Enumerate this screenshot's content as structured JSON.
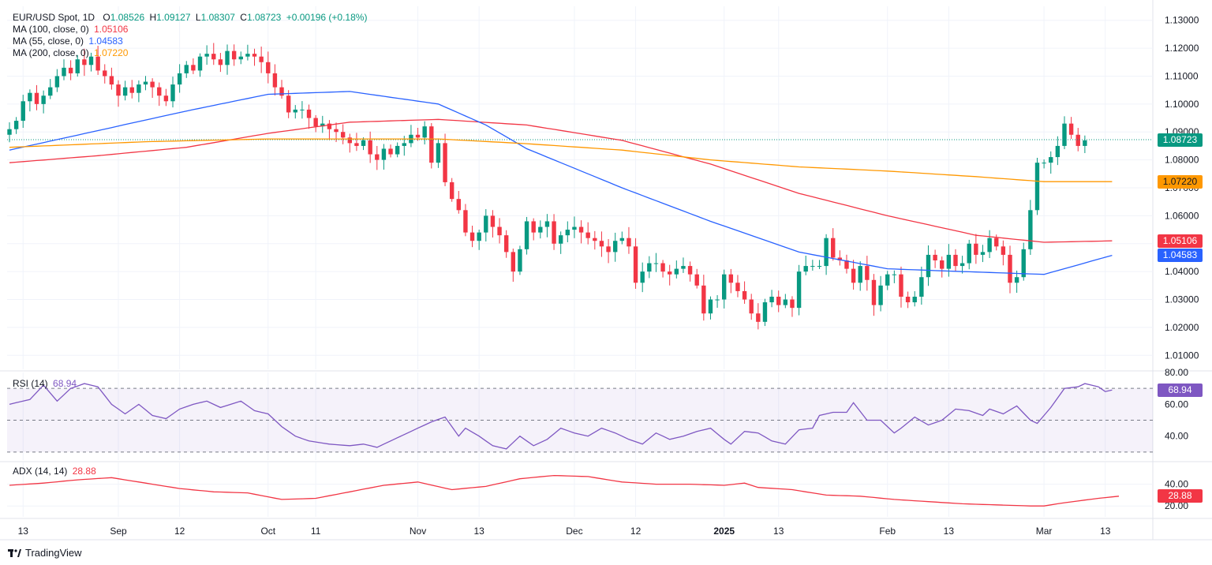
{
  "header": {
    "symbol": "EUR/USD Spot, 1D",
    "open_label": "O",
    "open": "1.08526",
    "high_label": "H",
    "high": "1.09127",
    "low_label": "L",
    "low": "1.08307",
    "close_label": "C",
    "close": "1.08723",
    "change": "+0.00196 (+0.18%)"
  },
  "indicators": {
    "ma100": {
      "label": "MA (100, close, 0)",
      "value": "1.05106",
      "color": "#f23645"
    },
    "ma55": {
      "label": "MA (55, close, 0)",
      "value": "1.04583",
      "color": "#2962ff"
    },
    "ma200": {
      "label": "MA (200, close, 0)",
      "value": "1.07220",
      "color": "#ff9800"
    },
    "rsi": {
      "label": "RSI (14)",
      "value": "68.94",
      "color": "#7e57c2"
    },
    "adx": {
      "label": "ADX (14, 14)",
      "value": "28.88",
      "color": "#f23645"
    }
  },
  "price_badges": {
    "last": {
      "value": "1.08723",
      "color": "#089981"
    },
    "ma200": {
      "value": "1.07220",
      "color": "#ff9800"
    },
    "ma100": {
      "value": "1.05106",
      "color": "#f23645"
    },
    "ma55": {
      "value": "1.04583",
      "color": "#2962ff"
    }
  },
  "colors": {
    "up": "#089981",
    "down": "#f23645",
    "grid": "#f0f3fa",
    "text": "#131722"
  },
  "brand": {
    "name": "TradingView"
  },
  "chart_data": [
    {
      "type": "candlestick",
      "title": "EUR/USD Spot, 1D",
      "ylim": [
        1.005,
        1.135
      ],
      "yticks": [
        "1.13000",
        "1.12000",
        "1.11000",
        "1.10000",
        "1.09000",
        "1.08000",
        "1.07000",
        "1.06000",
        "1.05000",
        "1.04000",
        "1.03000",
        "1.02000",
        "1.01000"
      ],
      "xticks": [
        {
          "label": "13",
          "index": 2
        },
        {
          "label": "Sep",
          "index": 16
        },
        {
          "label": "12",
          "index": 25
        },
        {
          "label": "Oct",
          "index": 38
        },
        {
          "label": "11",
          "index": 45
        },
        {
          "label": "Nov",
          "index": 60
        },
        {
          "label": "13",
          "index": 69
        },
        {
          "label": "Dec",
          "index": 83
        },
        {
          "label": "12",
          "index": 92
        },
        {
          "label": "2025",
          "index": 105,
          "bold": true
        },
        {
          "label": "13",
          "index": 113
        },
        {
          "label": "Feb",
          "index": 129
        },
        {
          "label": "13",
          "index": 138
        },
        {
          "label": "Mar",
          "index": 152
        },
        {
          "label": "13",
          "index": 161
        }
      ],
      "last_price": 1.08723,
      "closes": [
        1.091,
        1.094,
        1.101,
        1.104,
        1.1,
        1.103,
        1.106,
        1.11,
        1.113,
        1.111,
        1.116,
        1.114,
        1.117,
        1.112,
        1.11,
        1.107,
        1.103,
        1.106,
        1.104,
        1.107,
        1.108,
        1.106,
        1.103,
        1.101,
        1.107,
        1.111,
        1.114,
        1.112,
        1.117,
        1.118,
        1.116,
        1.114,
        1.119,
        1.116,
        1.117,
        1.118,
        1.117,
        1.115,
        1.111,
        1.106,
        1.103,
        1.097,
        1.098,
        1.098,
        1.095,
        1.092,
        1.093,
        1.091,
        1.09,
        1.088,
        1.086,
        1.085,
        1.087,
        1.082,
        1.08,
        1.084,
        1.082,
        1.085,
        1.086,
        1.089,
        1.088,
        1.092,
        1.079,
        1.086,
        1.072,
        1.066,
        1.062,
        1.054,
        1.051,
        1.054,
        1.06,
        1.056,
        1.053,
        1.047,
        1.04,
        1.048,
        1.058,
        1.054,
        1.056,
        1.058,
        1.05,
        1.053,
        1.055,
        1.056,
        1.054,
        1.052,
        1.051,
        1.049,
        1.047,
        1.051,
        1.052,
        1.049,
        1.036,
        1.04,
        1.043,
        1.043,
        1.04,
        1.039,
        1.041,
        1.042,
        1.039,
        1.035,
        1.025,
        1.03,
        1.03,
        1.039,
        1.036,
        1.033,
        1.03,
        1.025,
        1.022,
        1.029,
        1.031,
        1.028,
        1.03,
        1.027,
        1.04,
        1.042,
        1.042,
        1.042,
        1.052,
        1.045,
        1.044,
        1.041,
        1.036,
        1.042,
        1.037,
        1.028,
        1.035,
        1.039,
        1.039,
        1.031,
        1.029,
        1.031,
        1.038,
        1.046,
        1.044,
        1.041,
        1.046,
        1.042,
        1.043,
        1.05,
        1.046,
        1.047,
        1.052,
        1.049,
        1.046,
        1.036,
        1.038,
        1.048,
        1.062,
        1.079,
        1.079,
        1.081,
        1.085,
        1.093,
        1.089,
        1.085,
        1.087
      ],
      "ma100": {
        "anchors": [
          [
            0,
            1.079
          ],
          [
            13,
            1.0815
          ],
          [
            26,
            1.0845
          ],
          [
            38,
            1.0895
          ],
          [
            50,
            1.0935
          ],
          [
            63,
            1.0945
          ],
          [
            76,
            1.0925
          ],
          [
            90,
            1.087
          ],
          [
            103,
            1.0785
          ],
          [
            116,
            1.068
          ],
          [
            129,
            1.06
          ],
          [
            142,
            1.053
          ],
          [
            152,
            1.0505
          ],
          [
            162,
            1.051
          ]
        ]
      },
      "ma55": {
        "anchors": [
          [
            0,
            1.0835
          ],
          [
            13,
            1.0905
          ],
          [
            26,
            1.0975
          ],
          [
            38,
            1.1035
          ],
          [
            50,
            1.1045
          ],
          [
            63,
            1.1
          ],
          [
            70,
            1.0925
          ],
          [
            76,
            1.084
          ],
          [
            90,
            1.07
          ],
          [
            103,
            1.058
          ],
          [
            116,
            1.047
          ],
          [
            129,
            1.041
          ],
          [
            140,
            1.04
          ],
          [
            152,
            1.039
          ],
          [
            162,
            1.0458
          ]
        ]
      },
      "ma200": {
        "anchors": [
          [
            0,
            1.0845
          ],
          [
            20,
            1.0865
          ],
          [
            38,
            1.0875
          ],
          [
            63,
            1.0875
          ],
          [
            76,
            1.0858
          ],
          [
            90,
            1.0835
          ],
          [
            103,
            1.08
          ],
          [
            116,
            1.0775
          ],
          [
            129,
            1.076
          ],
          [
            142,
            1.074
          ],
          [
            152,
            1.0722
          ],
          [
            162,
            1.0722
          ]
        ]
      }
    },
    {
      "type": "line",
      "title": "RSI (14)",
      "ylim": [
        25,
        80
      ],
      "yticks": [
        "80.00",
        "60.00",
        "40.00"
      ],
      "bands": [
        70,
        50,
        30
      ],
      "values_anchors": [
        [
          0,
          60
        ],
        [
          3,
          63
        ],
        [
          5,
          72
        ],
        [
          7,
          62
        ],
        [
          9,
          70
        ],
        [
          11,
          73
        ],
        [
          13,
          71
        ],
        [
          15,
          60
        ],
        [
          17,
          54
        ],
        [
          19,
          60
        ],
        [
          21,
          53
        ],
        [
          23,
          51
        ],
        [
          25,
          57
        ],
        [
          27,
          60
        ],
        [
          29,
          62
        ],
        [
          31,
          58
        ],
        [
          34,
          62
        ],
        [
          36,
          56
        ],
        [
          38,
          54
        ],
        [
          40,
          46
        ],
        [
          42,
          40
        ],
        [
          44,
          37
        ],
        [
          47,
          35
        ],
        [
          50,
          34
        ],
        [
          52,
          35
        ],
        [
          54,
          33
        ],
        [
          56,
          37
        ],
        [
          58,
          41
        ],
        [
          60,
          45
        ],
        [
          62,
          49
        ],
        [
          64,
          52
        ],
        [
          66,
          40
        ],
        [
          67,
          45
        ],
        [
          69,
          40
        ],
        [
          71,
          34
        ],
        [
          73,
          32
        ],
        [
          75,
          40
        ],
        [
          77,
          34
        ],
        [
          79,
          38
        ],
        [
          81,
          45
        ],
        [
          83,
          42
        ],
        [
          85,
          40
        ],
        [
          87,
          45
        ],
        [
          89,
          42
        ],
        [
          91,
          38
        ],
        [
          93,
          35
        ],
        [
          95,
          42
        ],
        [
          97,
          38
        ],
        [
          99,
          40
        ],
        [
          101,
          43
        ],
        [
          103,
          45
        ],
        [
          105,
          38
        ],
        [
          106,
          35
        ],
        [
          108,
          43
        ],
        [
          110,
          42
        ],
        [
          112,
          37
        ],
        [
          114,
          35
        ],
        [
          116,
          44
        ],
        [
          118,
          45
        ],
        [
          119,
          53
        ],
        [
          121,
          55
        ],
        [
          123,
          55
        ],
        [
          124,
          61
        ],
        [
          126,
          50
        ],
        [
          128,
          50
        ],
        [
          130,
          42
        ],
        [
          131,
          45
        ],
        [
          133,
          52
        ],
        [
          135,
          47
        ],
        [
          137,
          50
        ],
        [
          139,
          57
        ],
        [
          141,
          56
        ],
        [
          143,
          53
        ],
        [
          144,
          57
        ],
        [
          146,
          54
        ],
        [
          148,
          59
        ],
        [
          150,
          50
        ],
        [
          151,
          48
        ],
        [
          153,
          58
        ],
        [
          155,
          70
        ],
        [
          157,
          71
        ],
        [
          158,
          73
        ],
        [
          160,
          71
        ],
        [
          161,
          68
        ],
        [
          162,
          69
        ]
      ]
    },
    {
      "type": "line",
      "title": "ADX (14, 14)",
      "ylim": [
        10,
        60
      ],
      "yticks": [
        "40.00",
        "20.00"
      ],
      "values_anchors": [
        [
          0,
          39
        ],
        [
          5,
          41
        ],
        [
          10,
          44
        ],
        [
          15,
          46
        ],
        [
          20,
          41
        ],
        [
          25,
          36
        ],
        [
          30,
          33
        ],
        [
          35,
          32
        ],
        [
          40,
          26
        ],
        [
          45,
          27
        ],
        [
          50,
          33
        ],
        [
          55,
          39
        ],
        [
          60,
          42
        ],
        [
          65,
          35
        ],
        [
          70,
          38
        ],
        [
          75,
          45
        ],
        [
          80,
          48
        ],
        [
          85,
          47
        ],
        [
          90,
          42
        ],
        [
          95,
          40
        ],
        [
          100,
          40
        ],
        [
          105,
          39
        ],
        [
          108,
          41
        ],
        [
          110,
          37
        ],
        [
          115,
          35
        ],
        [
          120,
          30
        ],
        [
          125,
          29
        ],
        [
          130,
          26
        ],
        [
          135,
          24
        ],
        [
          140,
          22
        ],
        [
          145,
          21
        ],
        [
          150,
          20
        ],
        [
          152,
          20
        ],
        [
          155,
          23
        ],
        [
          160,
          27
        ],
        [
          163,
          29
        ]
      ]
    }
  ]
}
